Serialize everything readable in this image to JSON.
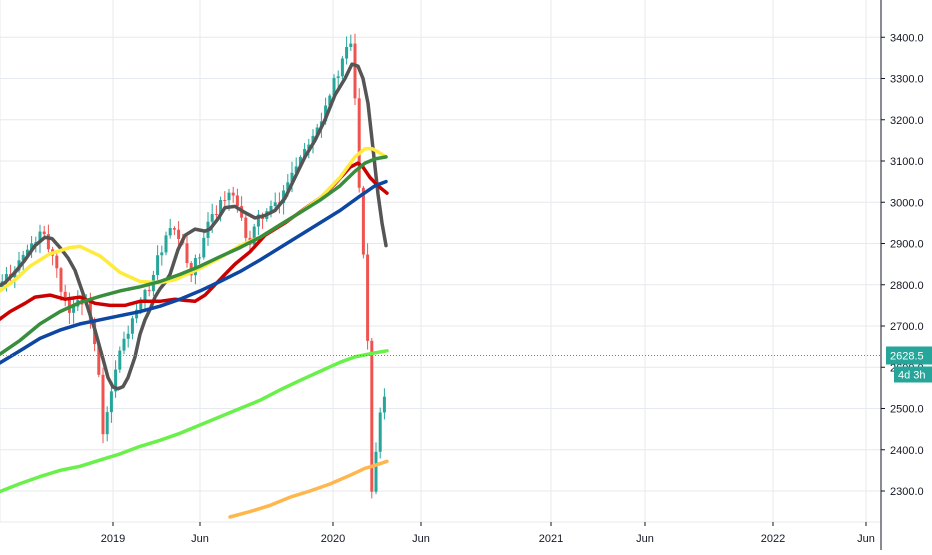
{
  "chart_data": {
    "type": "candlestick",
    "title": "",
    "xlabel": "",
    "ylabel": "",
    "ylim": [
      2235,
      3495
    ],
    "x_ticks": [
      "2019",
      "Jun",
      "2020",
      "Jun",
      "2021",
      "Jun",
      "2022",
      "Jun"
    ],
    "y_ticks": [
      "2300.0",
      "2400.0",
      "2500.0",
      "2600.0",
      "2700.0",
      "2800.0",
      "2900.0",
      "3000.0",
      "3100.0",
      "3200.0",
      "3300.0",
      "3400.0"
    ],
    "y_tick_values": [
      2300,
      2400,
      2500,
      2600,
      2700,
      2800,
      2900,
      3000,
      3100,
      3200,
      3300,
      3400
    ],
    "last_price": "2628.5",
    "last_price_value": 2628.5,
    "countdown": "4d 3h",
    "grid": true,
    "colors": {
      "up": "#26a69a",
      "down": "#ef5350",
      "price_line": "#26a69a",
      "badge": "#26a69a",
      "grid": "#e6e9ee",
      "axis": "#131722"
    },
    "series": [
      {
        "color": "#555555",
        "x": [
          -4,
          5,
          15,
          25,
          35,
          45,
          52,
          60,
          68,
          75,
          80,
          85,
          95,
          103,
          108,
          113,
          118,
          123,
          128,
          135,
          140,
          145,
          150,
          155,
          160,
          165,
          170,
          178,
          185,
          195,
          205,
          210,
          218,
          225,
          235,
          245,
          255,
          265,
          275,
          285,
          295,
          305,
          315,
          325,
          335,
          345,
          352,
          358,
          363,
          368,
          373,
          378,
          382,
          386
        ],
        "y": [
          2793,
          2805,
          2830,
          2860,
          2895,
          2915,
          2912,
          2890,
          2865,
          2835,
          2800,
          2765,
          2690,
          2620,
          2575,
          2552,
          2548,
          2553,
          2575,
          2625,
          2680,
          2715,
          2740,
          2770,
          2790,
          2805,
          2825,
          2885,
          2920,
          2935,
          2930,
          2935,
          2960,
          2987,
          2990,
          2975,
          2962,
          2968,
          2980,
          3010,
          3060,
          3110,
          3150,
          3200,
          3260,
          3300,
          3335,
          3330,
          3300,
          3240,
          3130,
          3020,
          2950,
          2895
        ]
      },
      {
        "color": "#cc0000",
        "x": [
          -4,
          10,
          25,
          35,
          50,
          65,
          80,
          95,
          110,
          125,
          140,
          160,
          175,
          185,
          195,
          205,
          215,
          225,
          235,
          250,
          265,
          285,
          305,
          320,
          335,
          350,
          358,
          363,
          370,
          378,
          387
        ],
        "y": [
          2710,
          2735,
          2755,
          2770,
          2775,
          2765,
          2770,
          2755,
          2750,
          2750,
          2760,
          2760,
          2765,
          2762,
          2760,
          2775,
          2800,
          2825,
          2850,
          2880,
          2920,
          2950,
          2985,
          3010,
          3045,
          3085,
          3095,
          3085,
          3060,
          3040,
          3022
        ]
      },
      {
        "color": "#ffeb3b",
        "x": [
          -4,
          15,
          30,
          50,
          70,
          80,
          100,
          120,
          140,
          160,
          175,
          200,
          220,
          240,
          260,
          280,
          300,
          320,
          340,
          355,
          365,
          372,
          378,
          386
        ],
        "y": [
          2778,
          2812,
          2845,
          2875,
          2890,
          2893,
          2870,
          2830,
          2808,
          2805,
          2812,
          2840,
          2865,
          2895,
          2915,
          2945,
          2975,
          3010,
          3060,
          3110,
          3130,
          3130,
          3122,
          3110
        ]
      },
      {
        "color": "#388e3c",
        "x": [
          -4,
          20,
          40,
          60,
          80,
          100,
          120,
          140,
          160,
          180,
          200,
          220,
          240,
          260,
          280,
          300,
          320,
          340,
          355,
          365,
          375,
          386
        ],
        "y": [
          2625,
          2665,
          2705,
          2735,
          2757,
          2772,
          2785,
          2795,
          2808,
          2825,
          2845,
          2868,
          2890,
          2915,
          2945,
          2975,
          3005,
          3040,
          3075,
          3095,
          3105,
          3110
        ]
      },
      {
        "color": "#0d47a1",
        "x": [
          -4,
          20,
          40,
          60,
          80,
          100,
          120,
          140,
          160,
          180,
          200,
          220,
          240,
          260,
          280,
          300,
          320,
          340,
          360,
          375,
          386
        ],
        "y": [
          2605,
          2640,
          2670,
          2690,
          2705,
          2715,
          2725,
          2735,
          2748,
          2765,
          2785,
          2808,
          2832,
          2860,
          2890,
          2920,
          2950,
          2980,
          3015,
          3040,
          3050
        ]
      },
      {
        "color": "#69f04a",
        "x": [
          -4,
          20,
          40,
          60,
          80,
          100,
          120,
          140,
          160,
          180,
          200,
          220,
          240,
          260,
          280,
          300,
          320,
          340,
          355,
          365,
          375,
          387
        ],
        "y": [
          2295,
          2318,
          2335,
          2350,
          2360,
          2375,
          2390,
          2408,
          2423,
          2440,
          2460,
          2480,
          2500,
          2520,
          2545,
          2568,
          2590,
          2612,
          2625,
          2630,
          2635,
          2640
        ]
      },
      {
        "color": "#ffb74d",
        "x": [
          230,
          250,
          270,
          290,
          310,
          330,
          350,
          365,
          375,
          387
        ],
        "y": [
          2237,
          2250,
          2265,
          2285,
          2300,
          2317,
          2338,
          2355,
          2362,
          2372
        ]
      }
    ]
  }
}
